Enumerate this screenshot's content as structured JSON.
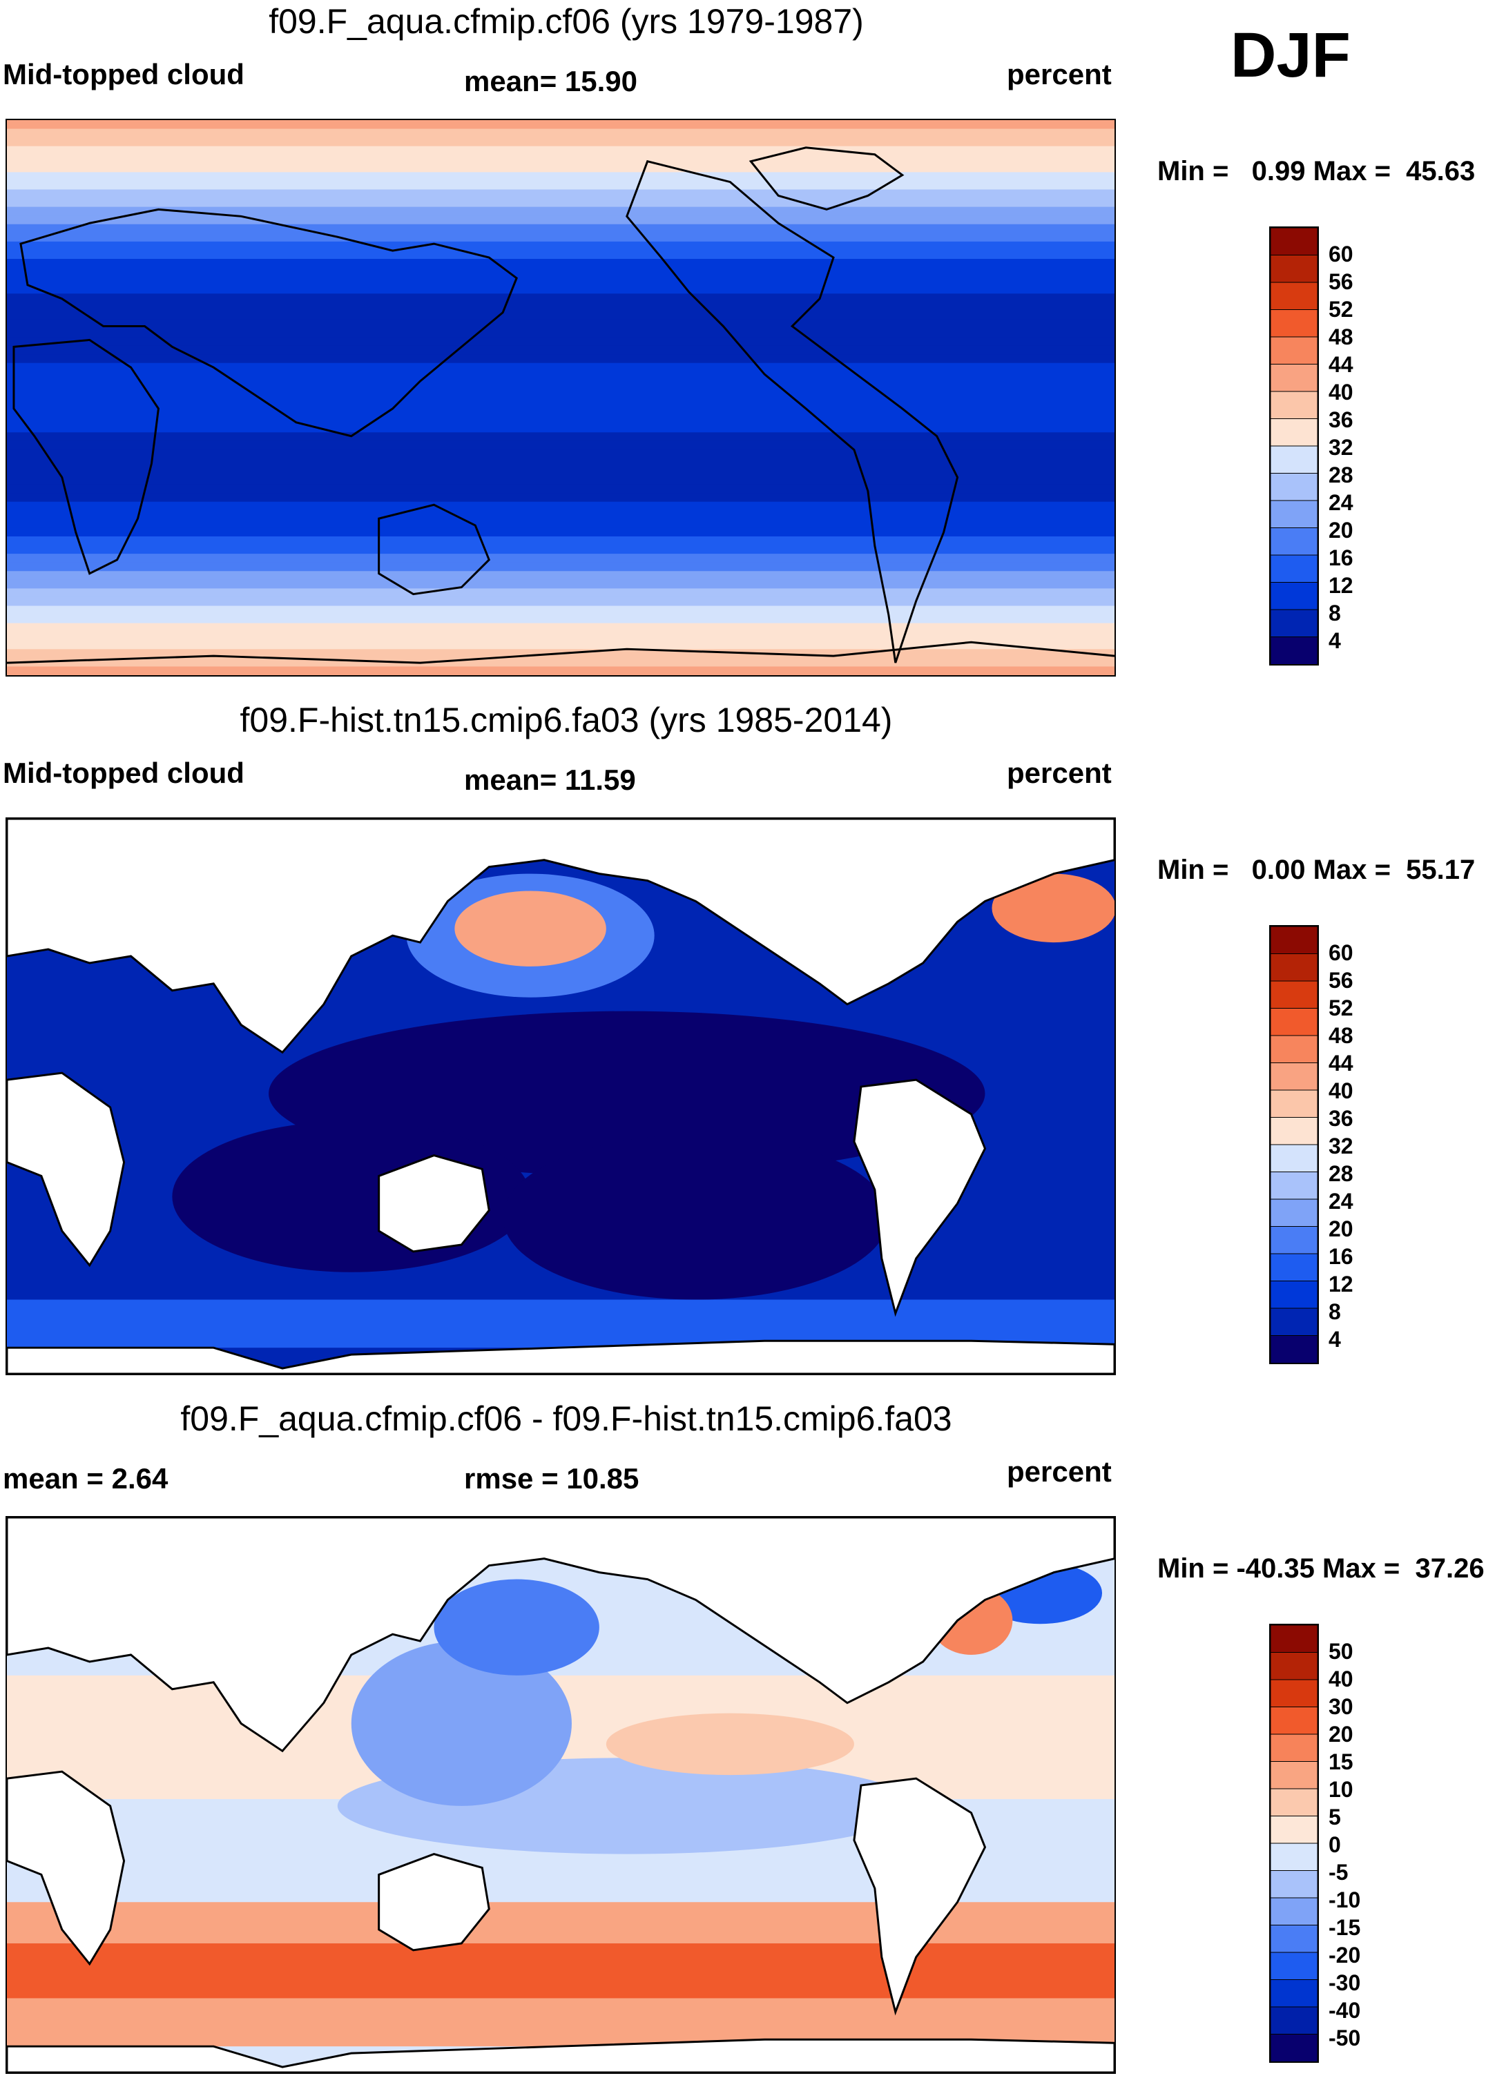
{
  "season": "DJF",
  "colors": {
    "seq12": [
      "#08006e",
      "#0025b3",
      "#0038d9",
      "#1e5cf0",
      "#4a7df5",
      "#7fa3f7",
      "#a9c2fa",
      "#d4e3fc",
      "#fde3d2",
      "#fbc6aa",
      "#f9a382",
      "#f7855d",
      "#f15a2c",
      "#d83b10",
      "#b42306",
      "#8c0a02"
    ],
    "div16": [
      "#08006e",
      "#0020aa",
      "#0035d0",
      "#1e5cf0",
      "#4a7df5",
      "#7fa3f7",
      "#a9c2fa",
      "#d8e6fc",
      "#fde7d8",
      "#fbc9ae",
      "#f9a582",
      "#f7835a",
      "#f15a2c",
      "#d8390f",
      "#b42306",
      "#8c0a02"
    ]
  },
  "panels": [
    {
      "title": "f09.F_aqua.cfmip.cf06 (yrs 1979-1987)",
      "left_label": "Mid-topped cloud",
      "center_label": "mean=  15.90",
      "right_label": "percent",
      "minmax": "Min =   0.99 Max =  45.63",
      "colorbar_ticks": [
        "60",
        "56",
        "52",
        "48",
        "44",
        "40",
        "36",
        "32",
        "28",
        "24",
        "20",
        "16",
        "12",
        "8",
        "4"
      ]
    },
    {
      "title": "f09.F-hist.tn15.cmip6.fa03 (yrs 1985-2014)",
      "left_label": "Mid-topped cloud",
      "center_label": "mean=  11.59",
      "right_label": "percent",
      "minmax": "Min =   0.00 Max =  55.17",
      "colorbar_ticks": [
        "60",
        "56",
        "52",
        "48",
        "44",
        "40",
        "36",
        "32",
        "28",
        "24",
        "20",
        "16",
        "12",
        "8",
        "4"
      ]
    },
    {
      "title": "f09.F_aqua.cfmip.cf06 - f09.F-hist.tn15.cmip6.fa03",
      "left_label": "mean =   2.64",
      "center_label": "rmse =  10.85",
      "right_label": "percent",
      "minmax": "Min = -40.35 Max =  37.26",
      "colorbar_ticks": [
        "50",
        "40",
        "30",
        "20",
        "15",
        "10",
        "5",
        "0",
        "-5",
        "-10",
        "-15",
        "-20",
        "-30",
        "-40",
        "-50"
      ]
    }
  ],
  "chart_data": [
    {
      "type": "heatmap",
      "title": "f09.F_aqua.cfmip.cf06 (yrs 1979-1987)",
      "variable": "Mid-topped cloud",
      "units": "percent",
      "mean": 15.9,
      "min": 0.99,
      "max": 45.63,
      "levels": [
        4,
        8,
        12,
        16,
        20,
        24,
        28,
        32,
        36,
        40,
        44,
        48,
        52,
        56,
        60
      ],
      "zonal_pattern": [
        {
          "band": "polar N",
          "level": 40
        },
        {
          "band": "mid-lat N",
          "level": 28
        },
        {
          "band": "subtropics N",
          "level": 12
        },
        {
          "band": "tropics N",
          "level": 4
        },
        {
          "band": "equator",
          "level": 12
        },
        {
          "band": "tropics S",
          "level": 4
        },
        {
          "band": "subtropics S",
          "level": 12
        },
        {
          "band": "mid-lat S",
          "level": 28
        },
        {
          "band": "polar S",
          "level": 40
        }
      ]
    },
    {
      "type": "heatmap",
      "title": "f09.F-hist.tn15.cmip6.fa03 (yrs 1985-2014)",
      "variable": "Mid-topped cloud",
      "units": "percent",
      "mean": 11.59,
      "min": 0.0,
      "max": 55.17,
      "levels": [
        4,
        8,
        12,
        16,
        20,
        24,
        28,
        32,
        36,
        40,
        44,
        48,
        52,
        56,
        60
      ]
    },
    {
      "type": "heatmap",
      "title": "f09.F_aqua.cfmip.cf06 - f09.F-hist.tn15.cmip6.fa03",
      "units": "percent",
      "mean": 2.64,
      "rmse": 10.85,
      "min": -40.35,
      "max": 37.26,
      "levels": [
        -50,
        -40,
        -30,
        -20,
        -15,
        -10,
        -5,
        0,
        5,
        10,
        15,
        20,
        30,
        40,
        50
      ]
    }
  ]
}
